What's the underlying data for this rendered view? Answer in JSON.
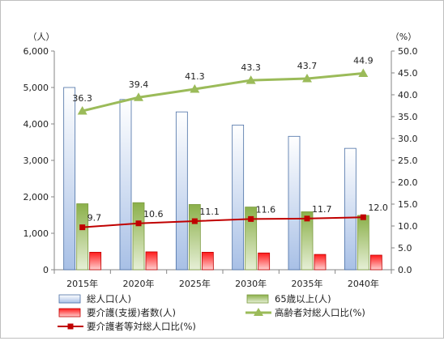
{
  "chart_data": {
    "type": "bar",
    "categories": [
      "2015年",
      "2020年",
      "2025年",
      "2030年",
      "2035年",
      "2040年"
    ],
    "left_axis": {
      "unit": "（人）",
      "ylim": [
        0,
        6000
      ],
      "ticks": [
        "0",
        "1,000",
        "2,000",
        "3,000",
        "4,000",
        "5,000",
        "6,000"
      ]
    },
    "right_axis": {
      "unit": "（%）",
      "ylim": [
        0,
        50
      ],
      "ticks": [
        "0.0",
        "5.0",
        "10.0",
        "15.0",
        "20.0",
        "25.0",
        "30.0",
        "35.0",
        "40.0",
        "45.0",
        "50.0"
      ]
    },
    "series": [
      {
        "name": "総人口(人)",
        "kind": "bar",
        "axis": "left",
        "color": "#4f81bd",
        "values": [
          5000,
          4670,
          4330,
          3970,
          3660,
          3330
        ]
      },
      {
        "name": "65歳以上(人)",
        "kind": "bar",
        "axis": "left",
        "color": "#9bbb59",
        "values": [
          1810,
          1840,
          1790,
          1720,
          1590,
          1490
        ]
      },
      {
        "name": "要介護(支援)者数(人)",
        "kind": "bar",
        "axis": "left",
        "color": "#ff0000",
        "values": [
          480,
          490,
          480,
          460,
          420,
          400
        ]
      },
      {
        "name": "高齢者対総人口比(%)",
        "kind": "line",
        "axis": "right",
        "color": "#9bbb59",
        "marker": "triangle",
        "values": [
          36.3,
          39.4,
          41.3,
          43.3,
          43.7,
          44.9
        ],
        "labels": [
          "36.3",
          "39.4",
          "41.3",
          "43.3",
          "43.7",
          "44.9"
        ]
      },
      {
        "name": "要介護者等対総人口比(%)",
        "kind": "line",
        "axis": "right",
        "color": "#c00000",
        "marker": "square",
        "values": [
          9.7,
          10.6,
          11.1,
          11.6,
          11.7,
          12.0
        ],
        "labels": [
          "9.7",
          "10.6",
          "11.1",
          "11.6",
          "11.7",
          "12.0"
        ]
      }
    ],
    "grid": false,
    "legend_position": "bottom"
  }
}
